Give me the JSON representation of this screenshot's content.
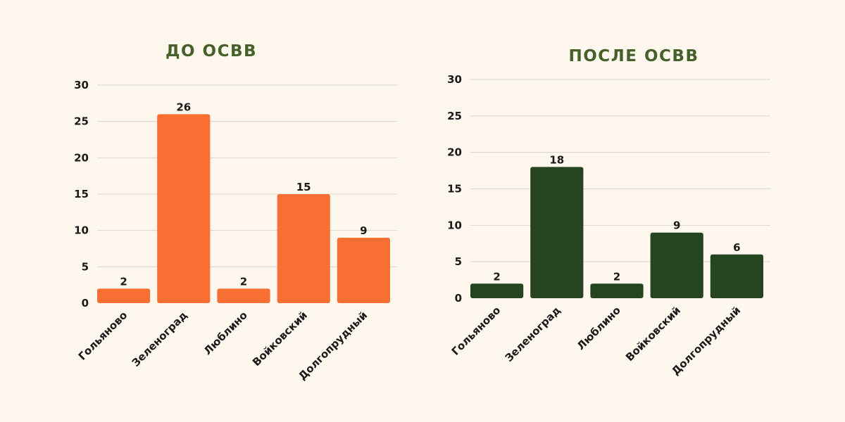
{
  "colors": {
    "background": "#fdf7ee",
    "title": "#45602a",
    "gridline": "#d8d6c8",
    "text": "#1a1a1a"
  },
  "chart_data": [
    {
      "type": "bar",
      "title": "ДО ОСВВ",
      "categories": [
        "Гольяново",
        "Зеленоград",
        "Люблино",
        "Войковский",
        "Долгопрудный"
      ],
      "values": [
        2,
        26,
        2,
        15,
        9
      ],
      "color": "#f76f33",
      "ylim": [
        0,
        30
      ],
      "yticks": [
        0,
        5,
        10,
        15,
        20,
        25,
        30
      ],
      "grid": true,
      "xlabel": "",
      "ylabel": ""
    },
    {
      "type": "bar",
      "title": "ПОСЛЕ ОСВВ",
      "categories": [
        "Гольяново",
        "Зеленоград",
        "Люблино",
        "Войковский",
        "Долгопрудный"
      ],
      "values": [
        2,
        18,
        2,
        9,
        6
      ],
      "color": "#254520",
      "ylim": [
        0,
        30
      ],
      "yticks": [
        0,
        5,
        10,
        15,
        20,
        25,
        30
      ],
      "grid": true,
      "xlabel": "",
      "ylabel": ""
    }
  ]
}
